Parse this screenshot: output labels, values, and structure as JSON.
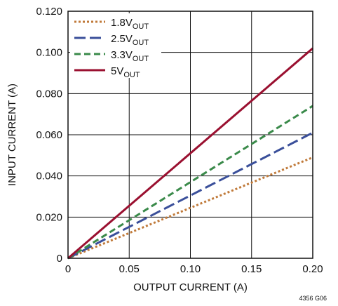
{
  "chart_data": {
    "type": "line",
    "xlabel": "OUTPUT CURRENT (A)",
    "ylabel": "INPUT CURRENT (A)",
    "xlim": [
      0,
      0.2
    ],
    "ylim": [
      0,
      0.12
    ],
    "x_ticks": [
      "0",
      "0.05",
      "0.10",
      "0.15",
      "0.20"
    ],
    "y_ticks": [
      "0",
      "0.020",
      "0.040",
      "0.060",
      "0.080",
      "0.100",
      "0.120"
    ],
    "grid": true,
    "legend_position": "top-left",
    "figure_id": "4356 G06",
    "series": [
      {
        "name": "1.8V",
        "name_sub": "OUT",
        "color": "#c07a3a",
        "style": "dotted",
        "x": [
          0,
          0.2
        ],
        "y": [
          0,
          0.049
        ]
      },
      {
        "name": "2.5V",
        "name_sub": "OUT",
        "color": "#3a4f9a",
        "style": "long-dash",
        "x": [
          0,
          0.2
        ],
        "y": [
          0,
          0.061
        ]
      },
      {
        "name": "3.3V",
        "name_sub": "OUT",
        "color": "#3a8a4a",
        "style": "dash",
        "x": [
          0,
          0.2
        ],
        "y": [
          0,
          0.074
        ]
      },
      {
        "name": "5V",
        "name_sub": "OUT",
        "color": "#9a1030",
        "style": "solid",
        "x": [
          0,
          0.2
        ],
        "y": [
          0,
          0.102
        ]
      }
    ]
  }
}
